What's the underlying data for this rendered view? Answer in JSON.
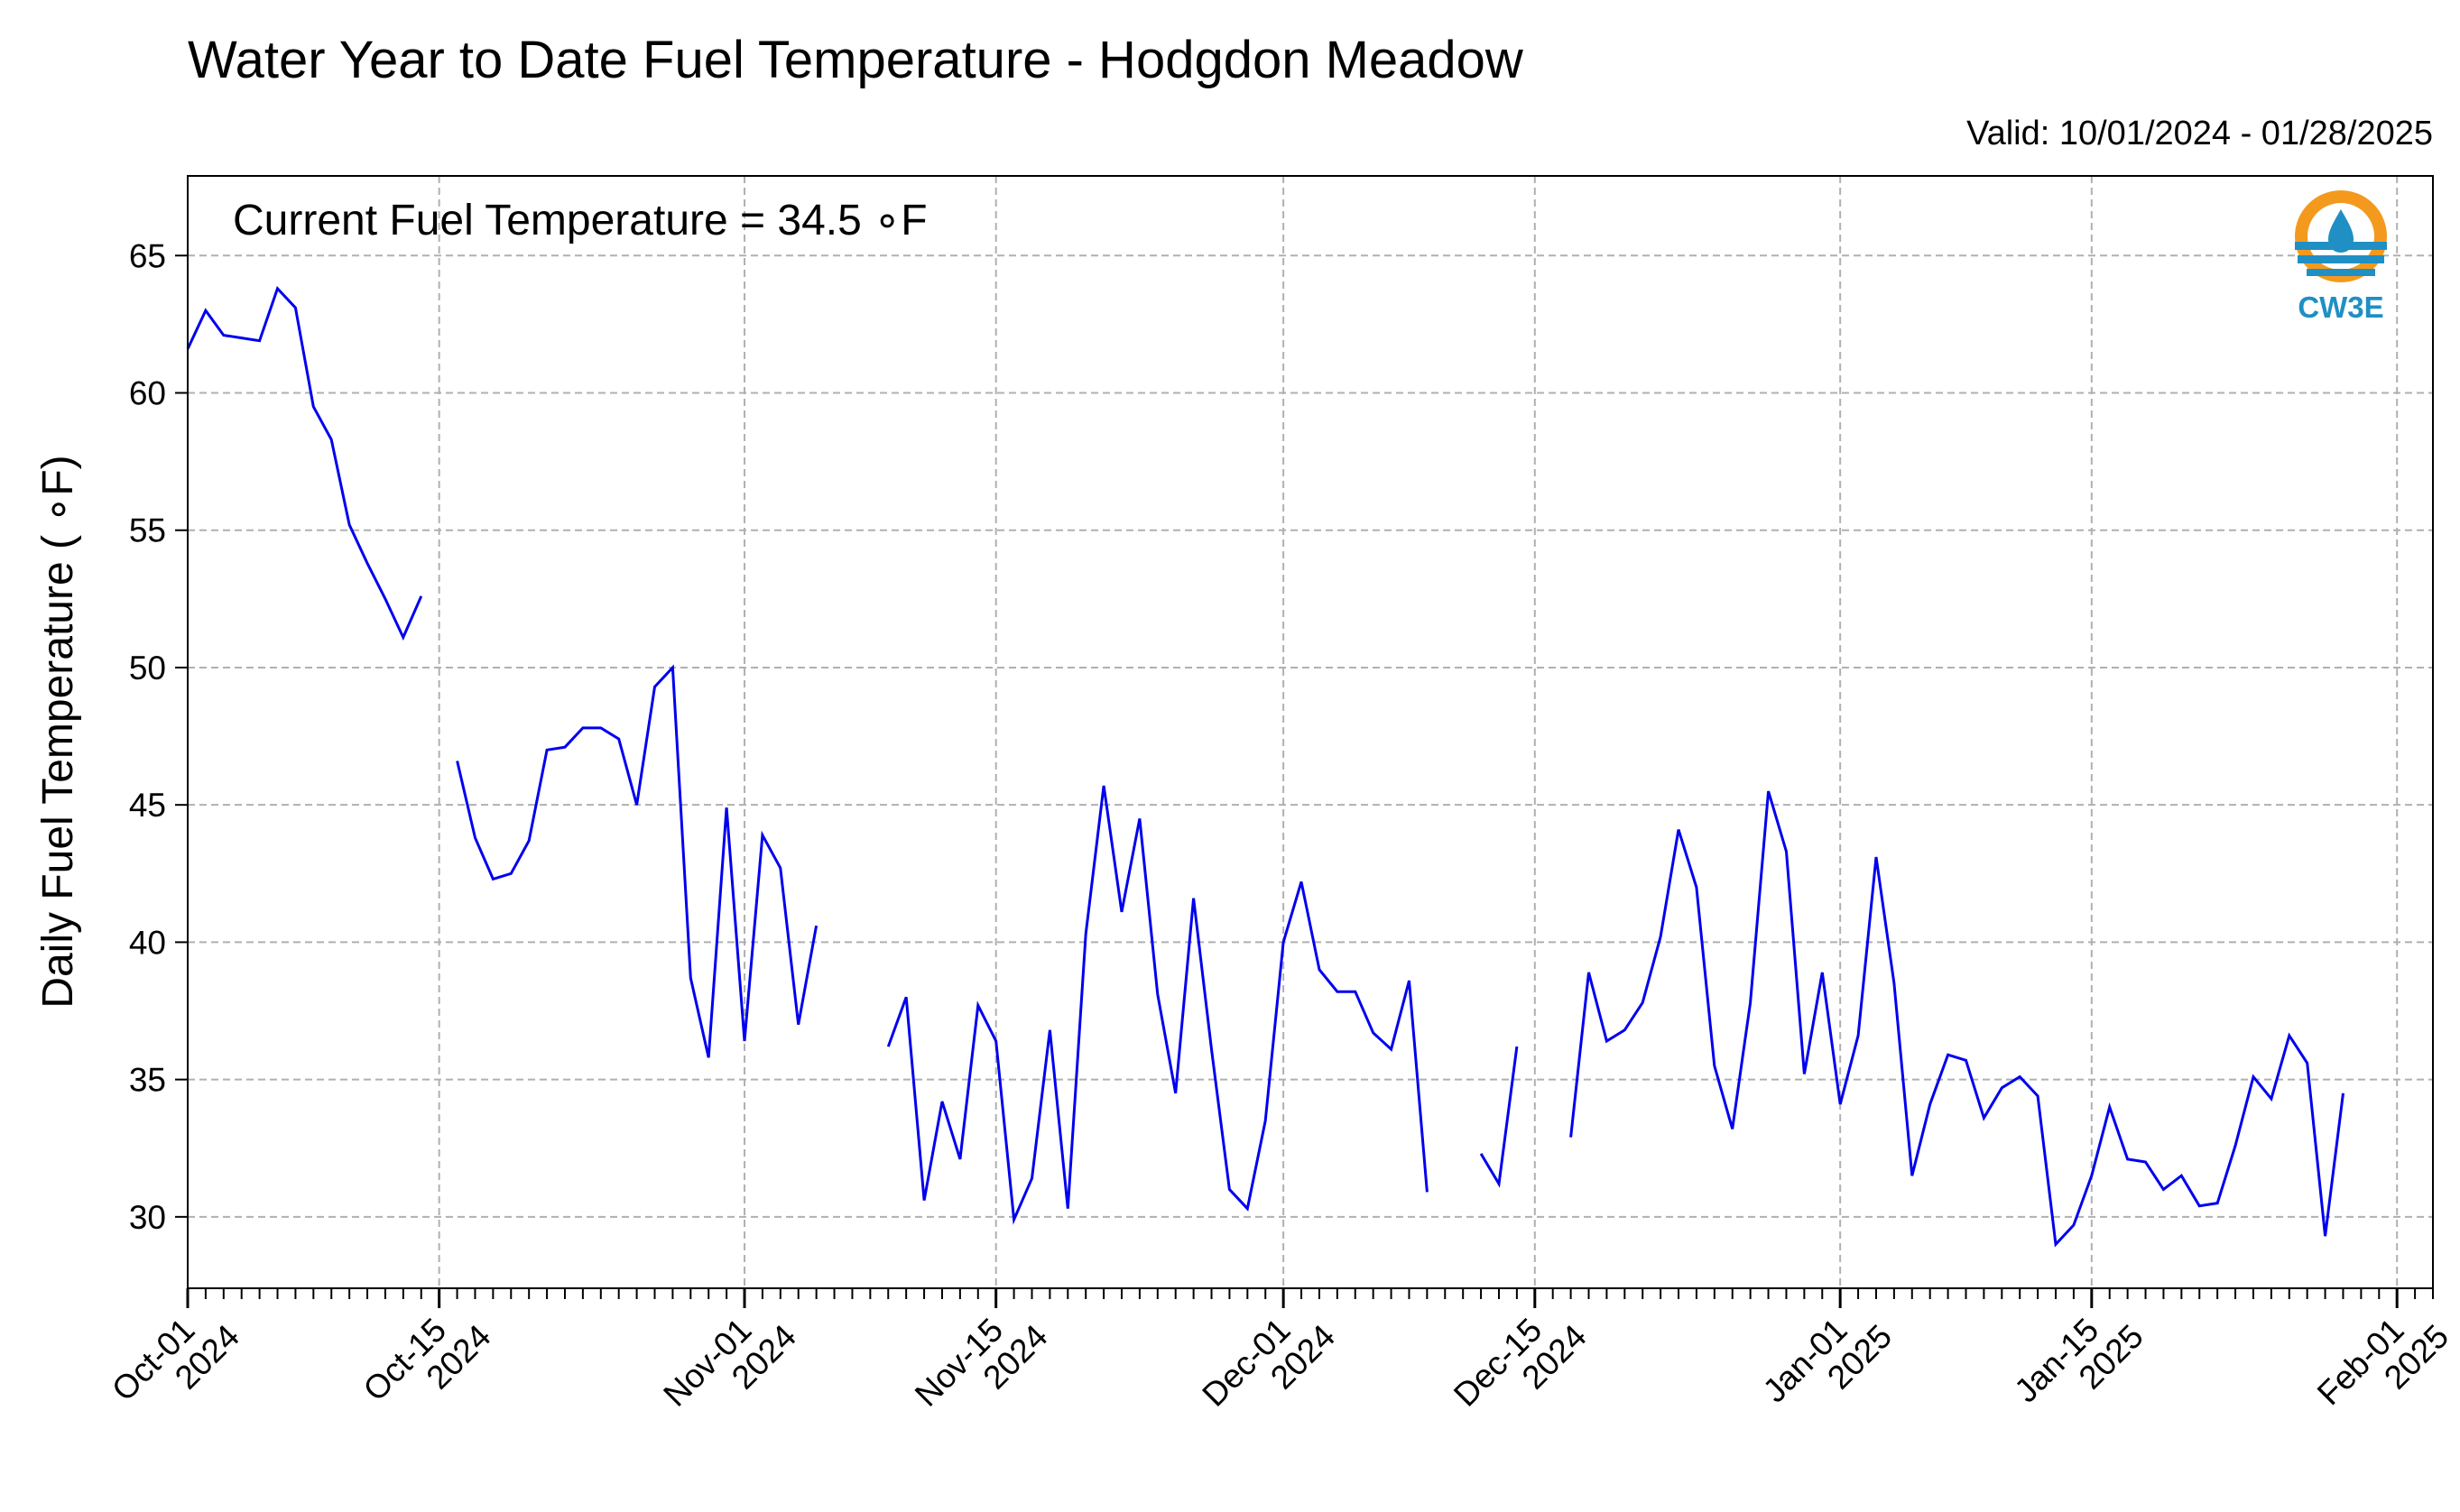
{
  "chart_data": {
    "type": "line",
    "title": "Water Year to Date Fuel Temperature - Hodgdon Meadow",
    "subtitle": "Valid: 10/01/2024 - 01/28/2025",
    "ylabel": "Daily Fuel Temperature ( ∘F)",
    "annotation": "Current Fuel Temperature = 34.5  ∘F",
    "logo_text": "CW3E",
    "ylim": [
      27.4,
      67.9
    ],
    "yticks": [
      30,
      35,
      40,
      45,
      50,
      55,
      60,
      65
    ],
    "xlim": [
      "2024-10-01",
      "2025-02-03"
    ],
    "xticks": [
      {
        "date": "2024-10-01",
        "label1": "Oct-01",
        "label2": "2024"
      },
      {
        "date": "2024-10-15",
        "label1": "Oct-15",
        "label2": "2024"
      },
      {
        "date": "2024-11-01",
        "label1": "Nov-01",
        "label2": "2024"
      },
      {
        "date": "2024-11-15",
        "label1": "Nov-15",
        "label2": "2024"
      },
      {
        "date": "2024-12-01",
        "label1": "Dec-01",
        "label2": "2024"
      },
      {
        "date": "2024-12-15",
        "label1": "Dec-15",
        "label2": "2024"
      },
      {
        "date": "2025-01-01",
        "label1": "Jan-01",
        "label2": "2025"
      },
      {
        "date": "2025-01-15",
        "label1": "Jan-15",
        "label2": "2025"
      },
      {
        "date": "2025-02-01",
        "label1": "Feb-01",
        "label2": "2025"
      }
    ],
    "grid": true,
    "series": [
      {
        "color": "#0000ee",
        "start": "2024-10-01",
        "values": [
          61.6,
          63.0,
          62.1,
          62.0,
          61.9,
          63.8,
          63.1,
          59.5,
          58.3,
          55.2,
          53.8,
          52.5,
          51.1,
          52.6,
          null,
          46.6,
          43.8,
          42.3,
          42.5,
          43.7,
          47.0,
          47.1,
          47.8,
          47.8,
          47.4,
          45.0,
          49.3,
          50.0,
          38.7,
          35.8,
          44.9,
          36.4,
          43.9,
          42.7,
          37.0,
          40.6,
          null,
          null,
          null,
          36.2,
          38.0,
          30.6,
          34.2,
          32.1,
          37.7,
          36.4,
          29.9,
          31.4,
          36.8,
          30.3,
          40.3,
          45.7,
          41.1,
          44.5,
          38.1,
          34.5,
          41.6,
          36.1,
          31.0,
          30.3,
          33.5,
          40.0,
          42.2,
          39.0,
          38.2,
          38.2,
          36.7,
          36.1,
          38.6,
          30.9,
          null,
          null,
          32.3,
          31.2,
          36.2,
          null,
          null,
          32.9,
          38.9,
          36.4,
          36.8,
          37.8,
          40.2,
          44.1,
          42.0,
          35.5,
          33.2,
          37.8,
          45.5,
          43.3,
          35.2,
          38.9,
          34.1,
          36.6,
          43.1,
          38.5,
          31.5,
          34.1,
          35.9,
          35.7,
          33.6,
          34.7,
          35.1,
          34.4,
          29.0,
          29.7,
          31.5,
          34.0,
          32.1,
          32.0,
          31.0,
          31.5,
          30.4,
          30.5,
          32.6,
          35.1,
          34.3,
          36.6,
          35.6,
          29.3,
          34.5
        ]
      }
    ]
  }
}
